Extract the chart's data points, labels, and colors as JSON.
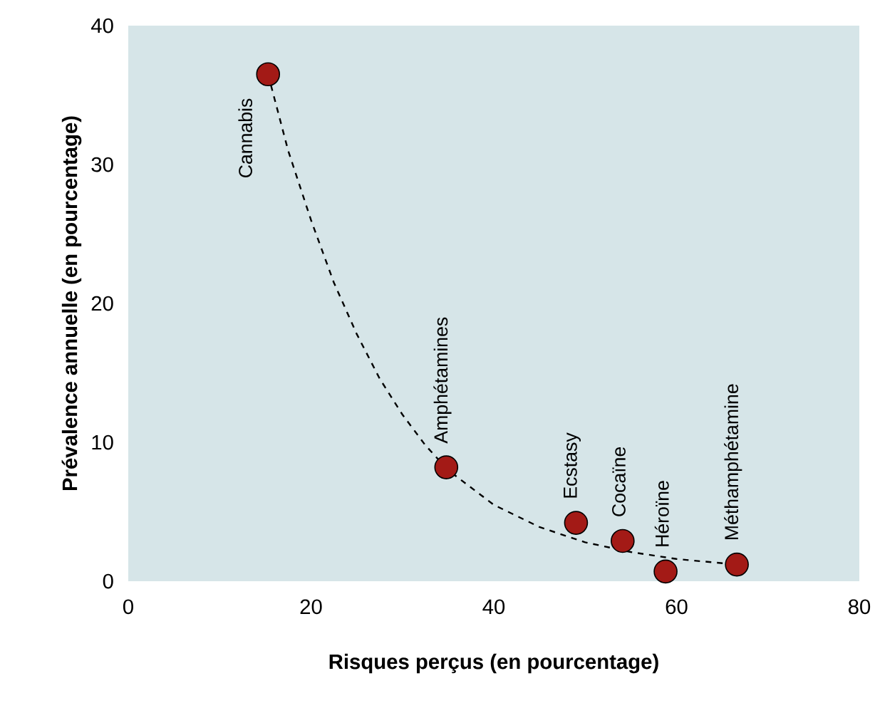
{
  "chart_data": {
    "type": "scatter",
    "xlabel": "Risques perçus (en pourcentage)",
    "ylabel": "Prévalence annuelle (en pourcentage)",
    "xlim": [
      0,
      80
    ],
    "ylim": [
      0,
      40
    ],
    "xticks": [
      0,
      20,
      40,
      60,
      80
    ],
    "yticks": [
      0,
      10,
      20,
      30,
      40
    ],
    "grid": false,
    "marker": "circle",
    "series": [
      {
        "color": "#a31a16",
        "x": [
          15.3,
          34.8,
          49,
          54.1,
          58.8,
          66.6
        ],
        "values": [
          36.5,
          8.2,
          4.2,
          2.9,
          0.7,
          1.2
        ]
      },
      {
        "type": "line",
        "line_style": "dashed",
        "marker": "none",
        "color": "#000000",
        "x": [
          15.3,
          17.5,
          20,
          22.5,
          25,
          27.5,
          30,
          32.5,
          35,
          40,
          45,
          50,
          55,
          60,
          66.6
        ],
        "values": [
          36.5,
          31,
          26,
          21.5,
          17.8,
          14.6,
          12,
          9.8,
          8,
          5.5,
          3.9,
          2.8,
          2.1,
          1.6,
          1.2
        ]
      }
    ],
    "annotations": [
      {
        "text": "Cannabis",
        "x": 15.3,
        "y": 36.5
      },
      {
        "text": "Amphétamines",
        "x": 34.8,
        "y": 8.2
      },
      {
        "text": "Ecstasy",
        "x": 49,
        "y": 4.2
      },
      {
        "text": "Cocaïne",
        "x": 54.1,
        "y": 2.9
      },
      {
        "text": "Héroïne",
        "x": 58.8,
        "y": 0.7
      },
      {
        "text": "Méthamphétamine",
        "x": 66.6,
        "y": 1.2
      }
    ]
  }
}
